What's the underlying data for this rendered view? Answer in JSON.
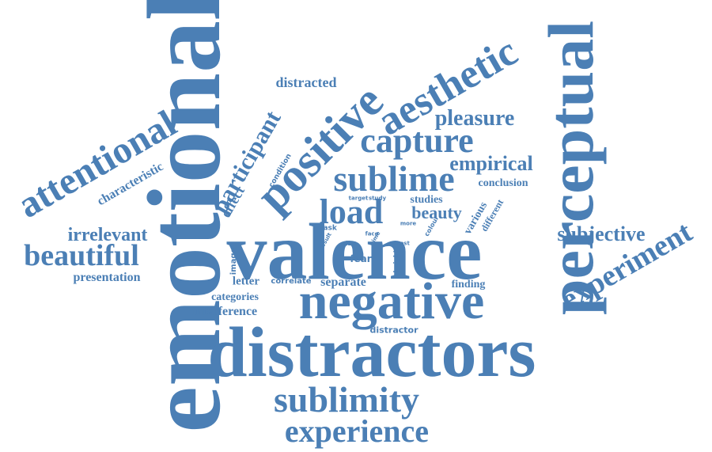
{
  "color": "#4b7fb5",
  "words": {
    "emotional": "emotional",
    "valence": "valence",
    "distractors": "distractors",
    "negative": "negative",
    "perceptual": "perceptual",
    "positive": "positive",
    "aesthetic": "aesthetic",
    "attentional": "attentional",
    "sublime": "sublime",
    "capture": "capture",
    "load": "load",
    "sublimity": "sublimity",
    "experience": "experience",
    "experiment": "experiment",
    "beautiful": "beautiful",
    "pleasure": "pleasure",
    "empirical": "empirical",
    "subjective": "subjective",
    "participant": "participant",
    "irrelevant": "irrelevant",
    "beauty": "beauty",
    "distracted": "distracted",
    "characteristic": "characteristic",
    "effect": "effect",
    "presentation": "presentation",
    "interference": "interference",
    "categories": "categories",
    "letter": "letter",
    "separate": "separate",
    "correlate": "correlate",
    "fear": "fear",
    "finding": "finding",
    "distractor": "distractor",
    "conclusion": "conclusion",
    "studies": "studies",
    "various": "various",
    "different": "different",
    "condition": "condition",
    "image": "image",
    "colour": "colour",
    "task": "task",
    "target": "target",
    "study": "study",
    "result": "result",
    "size": "size",
    "time": "time",
    "face": "face",
    "most": "most",
    "more": "more",
    "height": "height"
  }
}
